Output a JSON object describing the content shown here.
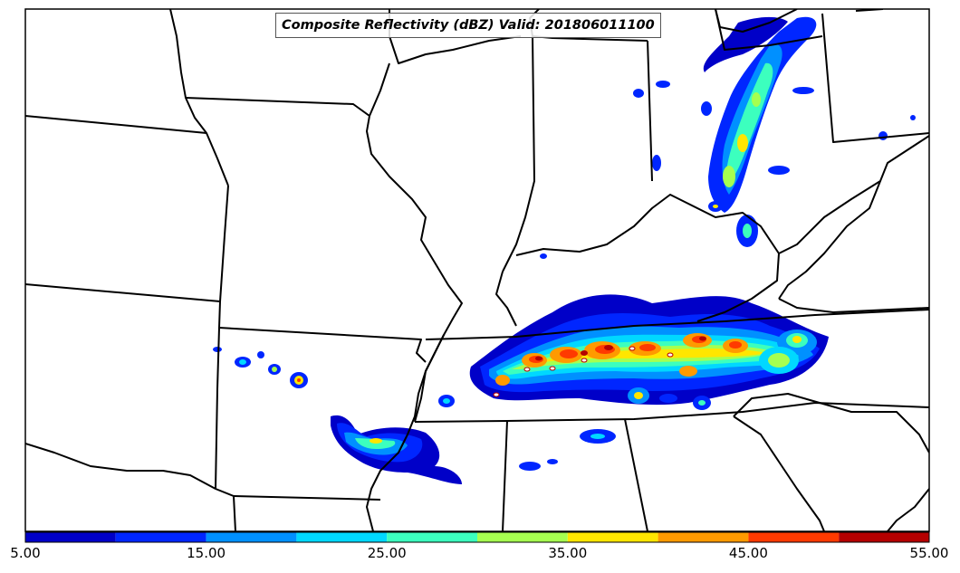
{
  "map": {
    "title": "Composite Reflectivity (dBZ) Valid: 201806011100",
    "field": "Composite Reflectivity",
    "units": "dBZ",
    "valid_time": "201806011100",
    "region": "Central / Southeastern United States",
    "colorbar": {
      "min": 5.0,
      "max": 55.0,
      "step": 5.0,
      "colors": [
        "#0000c8",
        "#0026ff",
        "#0090ff",
        "#00d8ff",
        "#3cffbe",
        "#a6ff50",
        "#ffe600",
        "#ff9a00",
        "#ff3a00",
        "#b40000"
      ],
      "tick_labels": [
        "5.00",
        "15.00",
        "25.00",
        "35.00",
        "45.00",
        "55.00"
      ]
    }
  }
}
